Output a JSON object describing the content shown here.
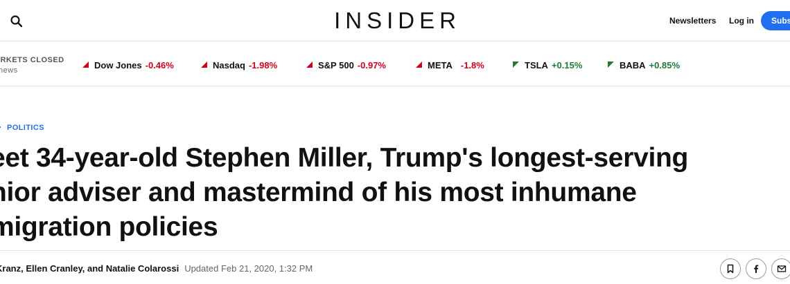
{
  "header": {
    "logo": "INSIDER",
    "newsletters_label": "Newsletters",
    "login_label": "Log in",
    "subscribe_label": "Subscribe"
  },
  "ticker": {
    "status": "ARKETS CLOSED",
    "sub": "news",
    "items": [
      {
        "name": "Dow Jones",
        "change": "-0.46%",
        "direction": "down"
      },
      {
        "name": "Nasdaq",
        "change": "-1.98%",
        "direction": "down"
      },
      {
        "name": "S&P 500",
        "change": "-0.97%",
        "direction": "down"
      },
      {
        "name": "META",
        "change": "-1.8%",
        "direction": "down"
      },
      {
        "name": "TSLA",
        "change": "+0.15%",
        "direction": "up"
      },
      {
        "name": "BABA",
        "change": "+0.85%",
        "direction": "up"
      }
    ]
  },
  "article": {
    "section": "POLITICS",
    "headline_lines": [
      "eet 34-year-old Stephen Miller, Trump's longest-serving",
      "nior adviser and mastermind of his most inhumane",
      "migration policies"
    ],
    "authors": "Kranz, Ellen Cranley, and Natalie Colarossi",
    "updated": "Updated Feb 21, 2020, 1:32 PM"
  },
  "colors": {
    "accent": "#1f6ff0",
    "negative": "#d0021b",
    "positive": "#1f7a35"
  },
  "icons": [
    "search-icon",
    "bookmark-icon",
    "facebook-icon",
    "email-icon"
  ]
}
